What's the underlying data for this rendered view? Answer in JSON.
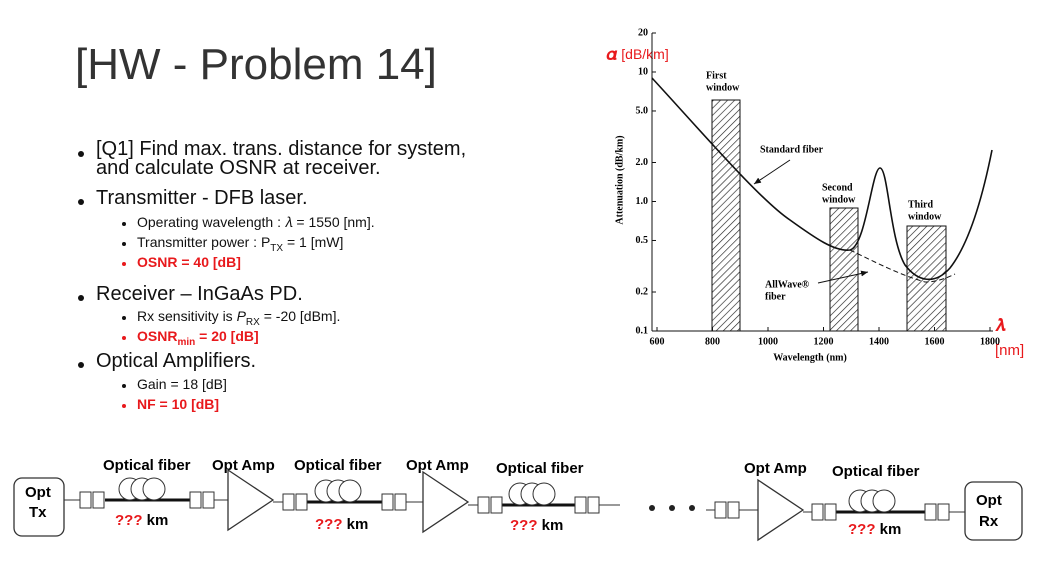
{
  "title": "[HW - Problem 14]",
  "bullets": [
    {
      "text": [
        "[Q1] Find max. trans. distance for system,",
        "and calculate OSNR at receiver."
      ]
    },
    {
      "text": [
        "Transmitter - DFB laser."
      ],
      "items": [
        [
          "Operating wavelength : 𝜆 = 1550 [nm]."
        ],
        [
          "Transmitter power : P",
          "TX",
          " = 1 [mW]"
        ],
        [
          "OSNR = 40 [dB]"
        ]
      ]
    },
    {
      "text": [
        "Receiver – InGaAs PD."
      ],
      "items": [
        [
          "Rx sensitivity is ",
          "P",
          "RX",
          " = -20 [dBm]."
        ],
        [
          "OSNR",
          "min",
          " = 20 [dB]"
        ]
      ]
    },
    {
      "text": [
        "Optical Amplifiers."
      ],
      "items": [
        [
          "Gain = 18 [dB]"
        ],
        [
          "NF = 10 [dB]"
        ]
      ]
    }
  ],
  "figure": {
    "alpha_label": [
      "𝜶",
      " [dB/km]"
    ],
    "lambda_label": [
      "𝝀",
      "[nm]"
    ],
    "y_axis_label": "Attenuation (dB/km)",
    "x_axis_label": "Wavelength (nm)",
    "log_y": true,
    "xlim": [
      600,
      1800
    ],
    "ylim": [
      0.1,
      20
    ],
    "xticks": [
      600,
      800,
      1000,
      1200,
      1400,
      1600,
      1800
    ],
    "yticks": [
      20,
      10,
      {
        "value": 5,
        "label": "5.0"
      },
      {
        "value": 2,
        "label": "2.0"
      },
      {
        "value": 1,
        "label": "1.0"
      },
      0.5,
      0.2,
      0.1
    ],
    "annotations": {
      "first_window": [
        "First",
        "window"
      ],
      "second_window": [
        "Second",
        "window"
      ],
      "third_window": [
        "Third",
        "window"
      ],
      "standard_fiber": "Standard fiber",
      "allwave": [
        "AllWave®",
        "fiber"
      ]
    }
  },
  "diagram": {
    "tx": [
      "Opt",
      "Tx"
    ],
    "rx": [
      "Opt",
      "Rx"
    ],
    "top_labels": [
      "Optical fiber",
      "Opt Amp",
      "Optical fiber",
      "Opt Amp",
      "Optical fiber",
      "Opt Amp",
      "Optical fiber"
    ],
    "spans": [
      [
        "???",
        "km"
      ],
      [
        "???",
        "km"
      ],
      [
        "???",
        "km"
      ],
      [
        "???",
        "km"
      ]
    ]
  }
}
